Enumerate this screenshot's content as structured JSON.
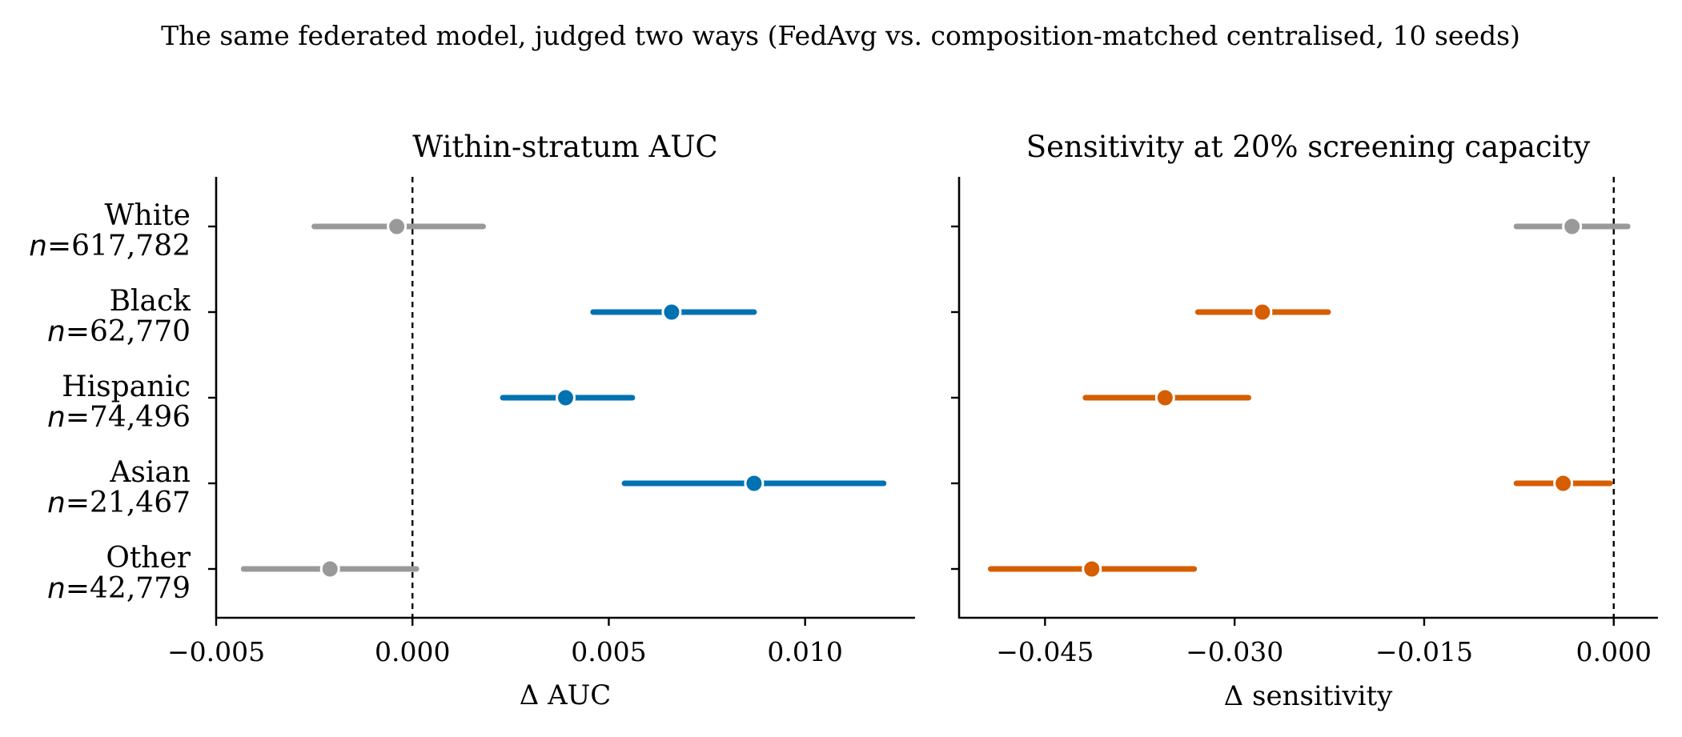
{
  "figure": {
    "suptitle": "The same federated model, judged two ways (FedAvg vs. composition-matched centralised, 10 seeds)"
  },
  "colors": {
    "blue": "#0072B2",
    "orange": "#D55E00",
    "gray": "#999999"
  },
  "chart_data": [
    {
      "type": "scatter",
      "subtype": "forest-plot with confidence intervals",
      "title": "Within-stratum AUC",
      "xlabel": "Δ AUC",
      "xlim": [
        -0.005,
        0.0128
      ],
      "xticks": [
        -0.005,
        0.0,
        0.005,
        0.01
      ],
      "xtick_labels": [
        "−0.005",
        "0.000",
        "0.005",
        "0.010"
      ],
      "reference_line": 0.0,
      "categories": [
        {
          "name": "White",
          "n_label": "n=617,782"
        },
        {
          "name": "Black",
          "n_label": "n=62,770"
        },
        {
          "name": "Hispanic",
          "n_label": "n=74,496"
        },
        {
          "name": "Asian",
          "n_label": "n=21,467"
        },
        {
          "name": "Other",
          "n_label": "n=42,779"
        }
      ],
      "points": [
        {
          "category": "White",
          "value": -0.0004,
          "ci_low": -0.0025,
          "ci_high": 0.0018,
          "color": "gray"
        },
        {
          "category": "Black",
          "value": 0.0066,
          "ci_low": 0.0046,
          "ci_high": 0.0087,
          "color": "blue"
        },
        {
          "category": "Hispanic",
          "value": 0.0039,
          "ci_low": 0.0023,
          "ci_high": 0.0056,
          "color": "blue"
        },
        {
          "category": "Asian",
          "value": 0.0087,
          "ci_low": 0.0054,
          "ci_high": 0.012,
          "color": "blue"
        },
        {
          "category": "Other",
          "value": -0.0021,
          "ci_low": -0.0043,
          "ci_high": 0.0001,
          "color": "gray"
        }
      ]
    },
    {
      "type": "scatter",
      "subtype": "forest-plot with confidence intervals",
      "title": "Sensitivity at 20% screening capacity",
      "xlabel": "Δ sensitivity",
      "xlim": [
        -0.0518,
        0.0035
      ],
      "xticks": [
        -0.045,
        -0.03,
        -0.015,
        0.0
      ],
      "xtick_labels": [
        "−0.045",
        "−0.030",
        "−0.015",
        "0.000"
      ],
      "reference_line": 0.0,
      "categories": [
        "White",
        "Black",
        "Hispanic",
        "Asian",
        "Other"
      ],
      "points": [
        {
          "category": "White",
          "value": -0.0033,
          "ci_low": -0.0077,
          "ci_high": 0.0011,
          "color": "gray"
        },
        {
          "category": "Black",
          "value": -0.0278,
          "ci_low": -0.0329,
          "ci_high": -0.0226,
          "color": "orange"
        },
        {
          "category": "Hispanic",
          "value": -0.0355,
          "ci_low": -0.0418,
          "ci_high": -0.0289,
          "color": "orange"
        },
        {
          "category": "Asian",
          "value": -0.004,
          "ci_low": -0.0077,
          "ci_high": -0.0003,
          "color": "orange"
        },
        {
          "category": "Other",
          "value": -0.0413,
          "ci_low": -0.0493,
          "ci_high": -0.0332,
          "color": "orange"
        }
      ]
    }
  ]
}
